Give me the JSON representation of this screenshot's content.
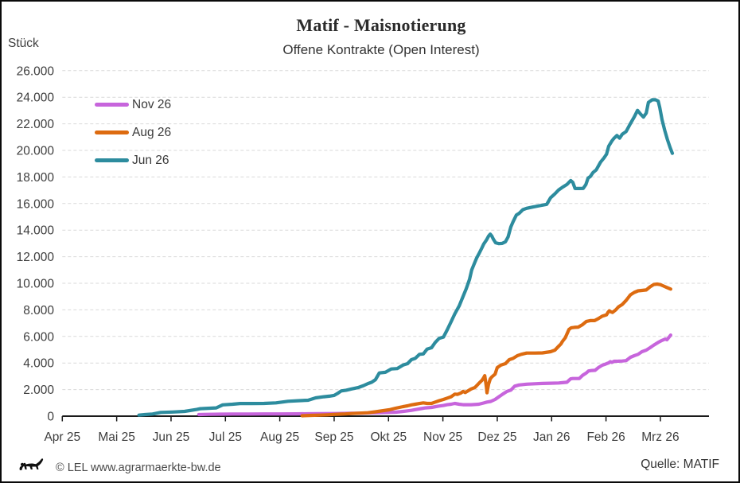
{
  "title": "Matif - Maisnotierung",
  "subtitle": "Offene Kontrakte (Open Interest)",
  "y_axis_unit": "Stück",
  "footer": {
    "copyright": "© LEL www.agrarmaerkte-bw.de",
    "source": "Quelle: MATIF"
  },
  "colors": {
    "axis": "#1a1a1a",
    "grid": "#d9d9d9",
    "tick_text": "#3d3d3d"
  },
  "chart_data": {
    "type": "line",
    "title": "Matif - Maisnotierung",
    "subtitle": "Offene Kontrakte (Open Interest)",
    "ylabel": "Stück",
    "ylim": [
      0,
      26000
    ],
    "y_step": 2000,
    "grid": "horizontal-dashed",
    "legend_position": "top-left",
    "x_tick_labels": [
      "Apr 25",
      "Mai 25",
      "Jun 25",
      "Jul 25",
      "Aug 25",
      "Sep 25",
      "Okt 25",
      "Nov 25",
      "Dez 25",
      "Jan 26",
      "Feb 26",
      "Mrz 26"
    ],
    "y_tick_labels": [
      "0",
      "2.000",
      "4.000",
      "6.000",
      "8.000",
      "10.000",
      "12.000",
      "14.000",
      "16.000",
      "18.000",
      "20.000",
      "22.000",
      "24.000",
      "26.000"
    ],
    "x_unit": "month index, 0 = Apr 25 tick, 11 = Mrz 26 tick",
    "series": [
      {
        "name": "Nov 26",
        "color": "#c765dc",
        "points": [
          [
            2.51,
            120
          ],
          [
            2.69,
            140
          ],
          [
            2.91,
            150
          ],
          [
            3.13,
            160
          ],
          [
            3.42,
            160
          ],
          [
            3.71,
            165
          ],
          [
            4.01,
            170
          ],
          [
            4.3,
            175
          ],
          [
            4.52,
            180
          ],
          [
            4.74,
            190
          ],
          [
            5.03,
            200
          ],
          [
            5.32,
            220
          ],
          [
            5.54,
            230
          ],
          [
            5.69,
            250
          ],
          [
            5.83,
            260
          ],
          [
            6.01,
            280
          ],
          [
            6.13,
            300
          ],
          [
            6.27,
            360
          ],
          [
            6.42,
            440
          ],
          [
            6.49,
            490
          ],
          [
            6.6,
            570
          ],
          [
            6.68,
            620
          ],
          [
            6.79,
            660
          ],
          [
            6.87,
            720
          ],
          [
            6.93,
            760
          ],
          [
            7.01,
            800
          ],
          [
            7.08,
            860
          ],
          [
            7.15,
            900
          ],
          [
            7.22,
            960
          ],
          [
            7.3,
            900
          ],
          [
            7.37,
            860
          ],
          [
            7.52,
            860
          ],
          [
            7.66,
            900
          ],
          [
            7.74,
            980
          ],
          [
            7.81,
            1060
          ],
          [
            7.88,
            1110
          ],
          [
            7.96,
            1260
          ],
          [
            8.03,
            1460
          ],
          [
            8.1,
            1660
          ],
          [
            8.18,
            1860
          ],
          [
            8.25,
            1960
          ],
          [
            8.32,
            2260
          ],
          [
            8.4,
            2350
          ],
          [
            8.54,
            2410
          ],
          [
            8.69,
            2440
          ],
          [
            8.83,
            2460
          ],
          [
            8.98,
            2480
          ],
          [
            9.13,
            2500
          ],
          [
            9.2,
            2520
          ],
          [
            9.28,
            2550
          ],
          [
            9.32,
            2700
          ],
          [
            9.35,
            2810
          ],
          [
            9.39,
            2830
          ],
          [
            9.45,
            2830
          ],
          [
            9.51,
            2840
          ],
          [
            9.57,
            3070
          ],
          [
            9.64,
            3260
          ],
          [
            9.68,
            3400
          ],
          [
            9.74,
            3440
          ],
          [
            9.8,
            3450
          ],
          [
            9.86,
            3650
          ],
          [
            9.93,
            3830
          ],
          [
            9.98,
            3900
          ],
          [
            10.01,
            3950
          ],
          [
            10.05,
            4010
          ],
          [
            10.08,
            4100
          ],
          [
            10.11,
            4050
          ],
          [
            10.15,
            4130
          ],
          [
            10.23,
            4140
          ],
          [
            10.3,
            4150
          ],
          [
            10.37,
            4180
          ],
          [
            10.45,
            4430
          ],
          [
            10.52,
            4550
          ],
          [
            10.59,
            4650
          ],
          [
            10.66,
            4850
          ],
          [
            10.74,
            4970
          ],
          [
            10.81,
            5150
          ],
          [
            10.88,
            5350
          ],
          [
            10.96,
            5550
          ],
          [
            11.03,
            5700
          ],
          [
            11.09,
            5800
          ],
          [
            11.12,
            5750
          ],
          [
            11.15,
            5900
          ],
          [
            11.19,
            6100
          ]
        ]
      },
      {
        "name": "Aug 26",
        "color": "#dd6b10",
        "points": [
          [
            4.41,
            30
          ],
          [
            4.59,
            60
          ],
          [
            4.74,
            80
          ],
          [
            4.88,
            100
          ],
          [
            5.0,
            130
          ],
          [
            5.1,
            150
          ],
          [
            5.21,
            170
          ],
          [
            5.32,
            200
          ],
          [
            5.47,
            230
          ],
          [
            5.62,
            260
          ],
          [
            5.76,
            330
          ],
          [
            5.91,
            420
          ],
          [
            6.01,
            480
          ],
          [
            6.13,
            600
          ],
          [
            6.2,
            660
          ],
          [
            6.27,
            720
          ],
          [
            6.35,
            780
          ],
          [
            6.42,
            850
          ],
          [
            6.49,
            900
          ],
          [
            6.57,
            950
          ],
          [
            6.64,
            1000
          ],
          [
            6.71,
            960
          ],
          [
            6.79,
            960
          ],
          [
            6.86,
            1060
          ],
          [
            6.93,
            1160
          ],
          [
            7.01,
            1260
          ],
          [
            7.08,
            1360
          ],
          [
            7.15,
            1460
          ],
          [
            7.22,
            1660
          ],
          [
            7.27,
            1640
          ],
          [
            7.33,
            1740
          ],
          [
            7.37,
            1860
          ],
          [
            7.41,
            1780
          ],
          [
            7.46,
            1900
          ],
          [
            7.52,
            2050
          ],
          [
            7.59,
            2160
          ],
          [
            7.66,
            2460
          ],
          [
            7.72,
            2700
          ],
          [
            7.75,
            2900
          ],
          [
            7.77,
            3050
          ],
          [
            7.8,
            2200
          ],
          [
            7.81,
            1760
          ],
          [
            7.84,
            2400
          ],
          [
            7.87,
            2800
          ],
          [
            7.9,
            2950
          ],
          [
            7.96,
            3160
          ],
          [
            8.0,
            3650
          ],
          [
            8.07,
            3850
          ],
          [
            8.15,
            3950
          ],
          [
            8.22,
            4250
          ],
          [
            8.29,
            4350
          ],
          [
            8.37,
            4550
          ],
          [
            8.44,
            4650
          ],
          [
            8.54,
            4750
          ],
          [
            8.69,
            4750
          ],
          [
            8.83,
            4760
          ],
          [
            8.98,
            4850
          ],
          [
            9.06,
            4970
          ],
          [
            9.13,
            5270
          ],
          [
            9.17,
            5430
          ],
          [
            9.2,
            5630
          ],
          [
            9.25,
            5900
          ],
          [
            9.28,
            6170
          ],
          [
            9.32,
            6530
          ],
          [
            9.36,
            6650
          ],
          [
            9.42,
            6680
          ],
          [
            9.49,
            6700
          ],
          [
            9.57,
            6890
          ],
          [
            9.64,
            7130
          ],
          [
            9.71,
            7190
          ],
          [
            9.79,
            7190
          ],
          [
            9.86,
            7340
          ],
          [
            9.93,
            7520
          ],
          [
            10.01,
            7630
          ],
          [
            10.04,
            7830
          ],
          [
            10.06,
            7930
          ],
          [
            10.09,
            7850
          ],
          [
            10.12,
            7810
          ],
          [
            10.18,
            8000
          ],
          [
            10.23,
            8230
          ],
          [
            10.3,
            8410
          ],
          [
            10.37,
            8710
          ],
          [
            10.45,
            9130
          ],
          [
            10.52,
            9310
          ],
          [
            10.59,
            9430
          ],
          [
            10.66,
            9460
          ],
          [
            10.74,
            9500
          ],
          [
            10.81,
            9730
          ],
          [
            10.88,
            9910
          ],
          [
            10.94,
            9940
          ],
          [
            11.0,
            9900
          ],
          [
            11.06,
            9790
          ],
          [
            11.12,
            9680
          ],
          [
            11.19,
            9560
          ]
        ]
      },
      {
        "name": "Jun 26",
        "color": "#2d8c9e",
        "points": [
          [
            1.41,
            80
          ],
          [
            1.52,
            120
          ],
          [
            1.66,
            160
          ],
          [
            1.81,
            280
          ],
          [
            2.03,
            310
          ],
          [
            2.25,
            360
          ],
          [
            2.47,
            500
          ],
          [
            2.54,
            560
          ],
          [
            2.72,
            600
          ],
          [
            2.83,
            620
          ],
          [
            2.95,
            850
          ],
          [
            3.13,
            900
          ],
          [
            3.27,
            950
          ],
          [
            3.49,
            950
          ],
          [
            3.71,
            960
          ],
          [
            3.93,
            1000
          ],
          [
            4.15,
            1120
          ],
          [
            4.33,
            1160
          ],
          [
            4.52,
            1200
          ],
          [
            4.66,
            1380
          ],
          [
            4.81,
            1460
          ],
          [
            4.91,
            1500
          ],
          [
            5.0,
            1560
          ],
          [
            5.06,
            1700
          ],
          [
            5.13,
            1900
          ],
          [
            5.22,
            1950
          ],
          [
            5.32,
            2050
          ],
          [
            5.44,
            2150
          ],
          [
            5.54,
            2300
          ],
          [
            5.62,
            2450
          ],
          [
            5.69,
            2550
          ],
          [
            5.76,
            2750
          ],
          [
            5.83,
            3250
          ],
          [
            5.94,
            3300
          ],
          [
            6.05,
            3550
          ],
          [
            6.16,
            3580
          ],
          [
            6.27,
            3850
          ],
          [
            6.35,
            3950
          ],
          [
            6.42,
            4250
          ],
          [
            6.49,
            4350
          ],
          [
            6.57,
            4650
          ],
          [
            6.64,
            4680
          ],
          [
            6.71,
            5050
          ],
          [
            6.79,
            5150
          ],
          [
            6.86,
            5550
          ],
          [
            6.93,
            5850
          ],
          [
            7.01,
            5950
          ],
          [
            7.08,
            6500
          ],
          [
            7.15,
            7100
          ],
          [
            7.22,
            7700
          ],
          [
            7.3,
            8300
          ],
          [
            7.37,
            9000
          ],
          [
            7.43,
            9600
          ],
          [
            7.49,
            10300
          ],
          [
            7.53,
            11000
          ],
          [
            7.58,
            11500
          ],
          [
            7.62,
            11900
          ],
          [
            7.66,
            12200
          ],
          [
            7.71,
            12600
          ],
          [
            7.75,
            12950
          ],
          [
            7.8,
            13250
          ],
          [
            7.84,
            13550
          ],
          [
            7.87,
            13700
          ],
          [
            7.9,
            13550
          ],
          [
            7.93,
            13300
          ],
          [
            7.97,
            13050
          ],
          [
            8.03,
            12980
          ],
          [
            8.09,
            13000
          ],
          [
            8.15,
            13120
          ],
          [
            8.2,
            13500
          ],
          [
            8.25,
            14240
          ],
          [
            8.29,
            14630
          ],
          [
            8.35,
            15130
          ],
          [
            8.4,
            15260
          ],
          [
            8.47,
            15540
          ],
          [
            8.54,
            15640
          ],
          [
            8.66,
            15740
          ],
          [
            8.78,
            15840
          ],
          [
            8.91,
            15940
          ],
          [
            8.98,
            16430
          ],
          [
            9.06,
            16730
          ],
          [
            9.13,
            17030
          ],
          [
            9.2,
            17230
          ],
          [
            9.28,
            17430
          ],
          [
            9.35,
            17730
          ],
          [
            9.39,
            17590
          ],
          [
            9.43,
            17130
          ],
          [
            9.51,
            17130
          ],
          [
            9.58,
            17140
          ],
          [
            9.63,
            17430
          ],
          [
            9.67,
            17920
          ],
          [
            9.71,
            18030
          ],
          [
            9.76,
            18330
          ],
          [
            9.82,
            18530
          ],
          [
            9.86,
            18820
          ],
          [
            9.9,
            19120
          ],
          [
            9.96,
            19420
          ],
          [
            10.01,
            19720
          ],
          [
            10.05,
            20320
          ],
          [
            10.11,
            20720
          ],
          [
            10.15,
            20920
          ],
          [
            10.2,
            21120
          ],
          [
            10.25,
            20920
          ],
          [
            10.3,
            21220
          ],
          [
            10.37,
            21420
          ],
          [
            10.45,
            22020
          ],
          [
            10.52,
            22520
          ],
          [
            10.58,
            23010
          ],
          [
            10.64,
            22710
          ],
          [
            10.69,
            22510
          ],
          [
            10.74,
            22810
          ],
          [
            10.78,
            23610
          ],
          [
            10.85,
            23810
          ],
          [
            10.91,
            23810
          ],
          [
            10.96,
            23710
          ],
          [
            10.99,
            23210
          ],
          [
            11.03,
            22310
          ],
          [
            11.08,
            21510
          ],
          [
            11.13,
            20810
          ],
          [
            11.18,
            20210
          ],
          [
            11.22,
            19780
          ]
        ]
      }
    ]
  }
}
